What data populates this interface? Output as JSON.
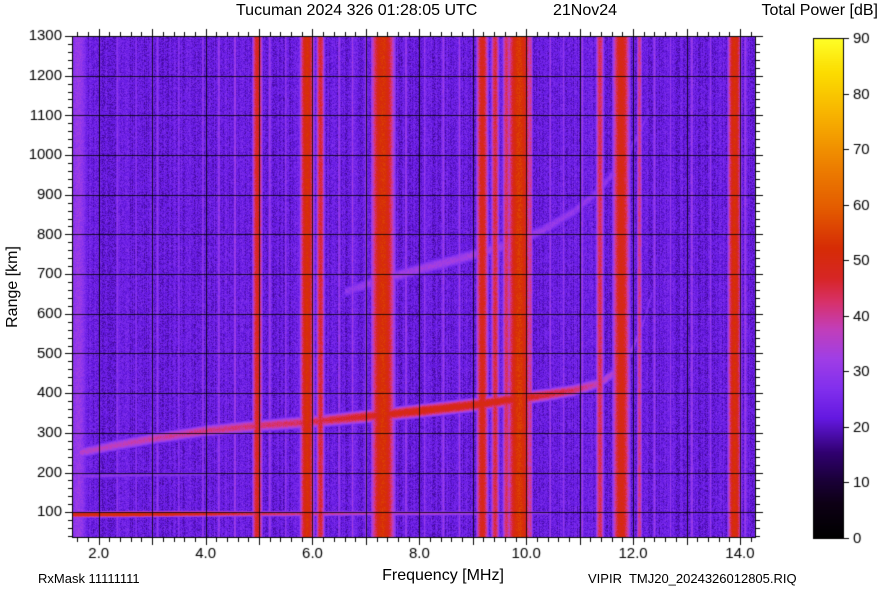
{
  "header": {
    "title": "Tucuman 2024 326 01:28:05 UTC",
    "date": "21Nov24",
    "colorbar_title": "Total Power [dB]"
  },
  "footer": {
    "rx_mask": "RxMask 11111111",
    "file_id": "VIPIR  TMJ20_2024326012805.RIQ"
  },
  "chart_data": {
    "type": "heatmap",
    "title": "Tucuman 2024 326 01:28:05 UTC",
    "date_label": "21Nov24",
    "xlabel": "Frequency [MHz]",
    "ylabel": "Range [km]",
    "value_label": "Total Power [dB]",
    "xlim": [
      1.5,
      14.3
    ],
    "ylim": [
      35,
      1300
    ],
    "x_major_ticks": [
      2,
      4,
      6,
      8,
      10,
      12,
      14
    ],
    "x_tick_labels": [
      "2.0",
      "4.0",
      "6.0",
      "8.0",
      "10.0",
      "12.0",
      "14.0"
    ],
    "x_grid_step": 1.0,
    "x_minor_step": 0.2,
    "y_major_ticks": [
      100,
      200,
      300,
      400,
      500,
      600,
      700,
      800,
      900,
      1000,
      1100,
      1200,
      1300
    ],
    "y_tick_labels": [
      "100",
      "200",
      "300",
      "400",
      "500",
      "600",
      "700",
      "800",
      "900",
      "1000",
      "1100",
      "1200",
      "1300"
    ],
    "y_grid_step": 100,
    "y_minor_step": 20,
    "grid_color": "#000000",
    "colorbar": {
      "label": "Total Power [dB]",
      "min": 0,
      "max": 90,
      "ticks": [
        0,
        10,
        20,
        30,
        40,
        50,
        60,
        70,
        80,
        90
      ]
    },
    "colormap_stops": [
      [
        0.0,
        0,
        0,
        0
      ],
      [
        0.07,
        14,
        0,
        22
      ],
      [
        0.12,
        28,
        0,
        60
      ],
      [
        0.17,
        48,
        0,
        110
      ],
      [
        0.24,
        100,
        25,
        225
      ],
      [
        0.3,
        130,
        48,
        238
      ],
      [
        0.36,
        160,
        62,
        230
      ],
      [
        0.42,
        195,
        62,
        185
      ],
      [
        0.47,
        215,
        50,
        110
      ],
      [
        0.52,
        215,
        38,
        38
      ],
      [
        0.58,
        214,
        44,
        6
      ],
      [
        0.66,
        228,
        92,
        0
      ],
      [
        0.75,
        238,
        130,
        0
      ],
      [
        0.85,
        248,
        180,
        0
      ],
      [
        0.93,
        252,
        220,
        0
      ],
      [
        1.0,
        255,
        255,
        40
      ]
    ],
    "noise": {
      "base_db": 22.5,
      "pixel_jitter_db": 3.5,
      "column_jitter_db": 2.0
    },
    "rfi_bands": [
      {
        "f": 1.62,
        "w": 0.3,
        "db": 31
      },
      {
        "f": 2.35,
        "w": 0.05,
        "db": 29
      },
      {
        "f": 2.7,
        "w": 0.04,
        "db": 28
      },
      {
        "f": 3.1,
        "w": 0.05,
        "db": 30
      },
      {
        "f": 3.5,
        "w": 0.04,
        "db": 29
      },
      {
        "f": 3.95,
        "w": 0.04,
        "db": 30
      },
      {
        "f": 4.25,
        "w": 0.05,
        "db": 31
      },
      {
        "f": 4.55,
        "w": 0.05,
        "db": 32
      },
      {
        "f": 4.97,
        "w": 0.12,
        "db": 48
      },
      {
        "f": 5.2,
        "w": 0.05,
        "db": 31
      },
      {
        "f": 5.5,
        "w": 0.04,
        "db": 30
      },
      {
        "f": 5.9,
        "w": 0.16,
        "db": 52
      },
      {
        "f": 6.15,
        "w": 0.1,
        "db": 46
      },
      {
        "f": 6.5,
        "w": 0.05,
        "db": 31
      },
      {
        "f": 6.75,
        "w": 0.04,
        "db": 32
      },
      {
        "f": 7.0,
        "w": 0.04,
        "db": 31
      },
      {
        "f": 7.32,
        "w": 0.26,
        "db": 53
      },
      {
        "f": 7.75,
        "w": 0.05,
        "db": 31
      },
      {
        "f": 8.1,
        "w": 0.04,
        "db": 30
      },
      {
        "f": 8.45,
        "w": 0.05,
        "db": 31
      },
      {
        "f": 8.75,
        "w": 0.04,
        "db": 32
      },
      {
        "f": 9.18,
        "w": 0.14,
        "db": 49
      },
      {
        "f": 9.42,
        "w": 0.1,
        "db": 45
      },
      {
        "f": 9.63,
        "w": 0.1,
        "db": 43
      },
      {
        "f": 9.87,
        "w": 0.26,
        "db": 54
      },
      {
        "f": 10.08,
        "w": 0.06,
        "db": 40
      },
      {
        "f": 10.45,
        "w": 0.04,
        "db": 31
      },
      {
        "f": 10.7,
        "w": 0.04,
        "db": 30
      },
      {
        "f": 11.05,
        "w": 0.05,
        "db": 31
      },
      {
        "f": 11.38,
        "w": 0.1,
        "db": 44
      },
      {
        "f": 11.78,
        "w": 0.2,
        "db": 50
      },
      {
        "f": 12.12,
        "w": 0.07,
        "db": 41
      },
      {
        "f": 12.4,
        "w": 0.05,
        "db": 31
      },
      {
        "f": 12.7,
        "w": 0.04,
        "db": 30
      },
      {
        "f": 13.1,
        "w": 0.05,
        "db": 31
      },
      {
        "f": 13.45,
        "w": 0.04,
        "db": 30
      },
      {
        "f": 13.9,
        "w": 0.15,
        "db": 52
      },
      {
        "f": 14.1,
        "w": 0.05,
        "db": 31
      }
    ],
    "traces": [
      {
        "name": "F-layer echo 1st hop",
        "half_width_km": 11,
        "points": [
          [
            1.65,
            250,
            36
          ],
          [
            2.2,
            265,
            37
          ],
          [
            3.0,
            285,
            39
          ],
          [
            4.0,
            305,
            41
          ],
          [
            5.0,
            318,
            42
          ],
          [
            6.0,
            328,
            44
          ],
          [
            7.0,
            341,
            48
          ],
          [
            8.0,
            355,
            50
          ],
          [
            9.0,
            370,
            50
          ],
          [
            9.8,
            385,
            49
          ],
          [
            10.4,
            396,
            46
          ],
          [
            10.9,
            407,
            43
          ],
          [
            11.4,
            426,
            37
          ],
          [
            11.75,
            462,
            33
          ],
          [
            12.0,
            515,
            31
          ],
          [
            12.2,
            580,
            29
          ],
          [
            12.35,
            650,
            27
          ]
        ]
      },
      {
        "name": "F-layer echo 2nd hop",
        "half_width_km": 14,
        "points": [
          [
            6.6,
            655,
            29
          ],
          [
            7.2,
            682,
            32
          ],
          [
            8.0,
            712,
            33
          ],
          [
            8.8,
            740,
            33
          ],
          [
            9.6,
            772,
            32
          ],
          [
            10.3,
            810,
            31
          ],
          [
            10.9,
            858,
            30
          ],
          [
            11.4,
            915,
            29
          ],
          [
            11.8,
            985,
            28
          ],
          [
            12.1,
            1050,
            27
          ],
          [
            12.3,
            1110,
            26
          ]
        ]
      },
      {
        "name": "E-region minimum-range echo",
        "half_width_km": 5,
        "points": [
          [
            1.5,
            94,
            50
          ],
          [
            2.5,
            95,
            52
          ],
          [
            4.0,
            96,
            48
          ],
          [
            5.5,
            96,
            42
          ],
          [
            7.0,
            97,
            37
          ],
          [
            8.5,
            97,
            34
          ],
          [
            9.8,
            98,
            31
          ],
          [
            10.4,
            98,
            29
          ]
        ]
      },
      {
        "name": "E-region faint multiple",
        "half_width_km": 6,
        "points": [
          [
            1.55,
            190,
            30
          ],
          [
            2.5,
            193,
            29
          ],
          [
            3.5,
            195,
            28
          ],
          [
            4.2,
            196,
            26
          ]
        ]
      }
    ]
  }
}
